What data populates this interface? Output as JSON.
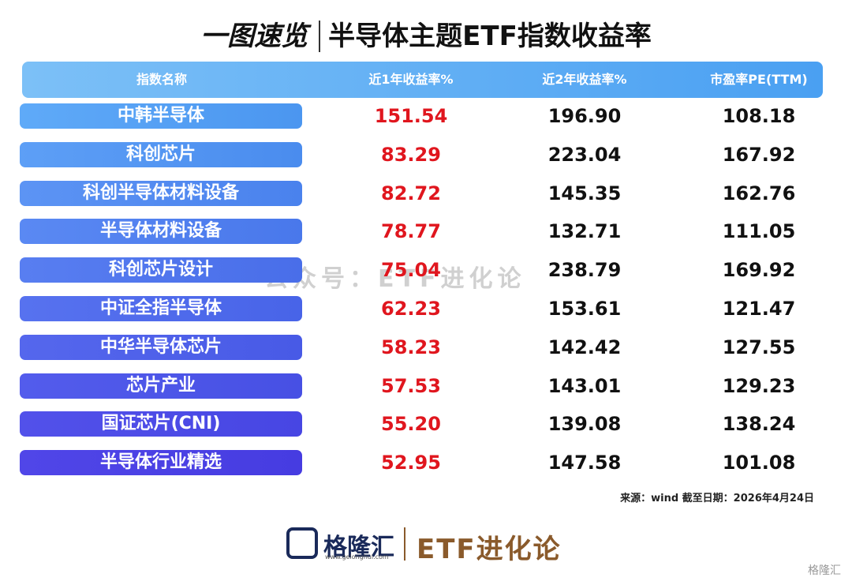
{
  "header": {
    "tag": "一图速览",
    "title": "半导体主题ETF指数收益率"
  },
  "table": {
    "columns": [
      "指数名称",
      "近1年收益率%",
      "近2年收益率%",
      "市盈率PE(TTM)"
    ],
    "rows": [
      [
        "中韩半导体",
        "151.54",
        "196.90",
        "108.18"
      ],
      [
        "科创芯片",
        "83.29",
        "223.04",
        "167.92"
      ],
      [
        "科创半导体材料设备",
        "82.72",
        "145.35",
        "162.76"
      ],
      [
        "半导体材料设备",
        "78.77",
        "132.71",
        "111.05"
      ],
      [
        "科创芯片设计",
        "75.04",
        "238.79",
        "169.92"
      ],
      [
        "中证全指半导体",
        "62.23",
        "153.61",
        "121.47"
      ],
      [
        "中华半导体芯片",
        "58.23",
        "142.42",
        "127.55"
      ],
      [
        "芯片产业",
        "57.53",
        "143.01",
        "129.23"
      ],
      [
        "国证芯片(CNI)",
        "55.20",
        "139.08",
        "138.24"
      ],
      [
        "半导体行业精选",
        "52.95",
        "147.58",
        "101.08"
      ]
    ]
  },
  "source": "来源：wind 截至日期：2026年4月24日",
  "watermark": "公众号：ETF进化论",
  "footer": {
    "brand": "格隆汇",
    "url": "www.gelonghui.com",
    "channel": "ETF进化论",
    "corner": "格隆汇"
  }
}
